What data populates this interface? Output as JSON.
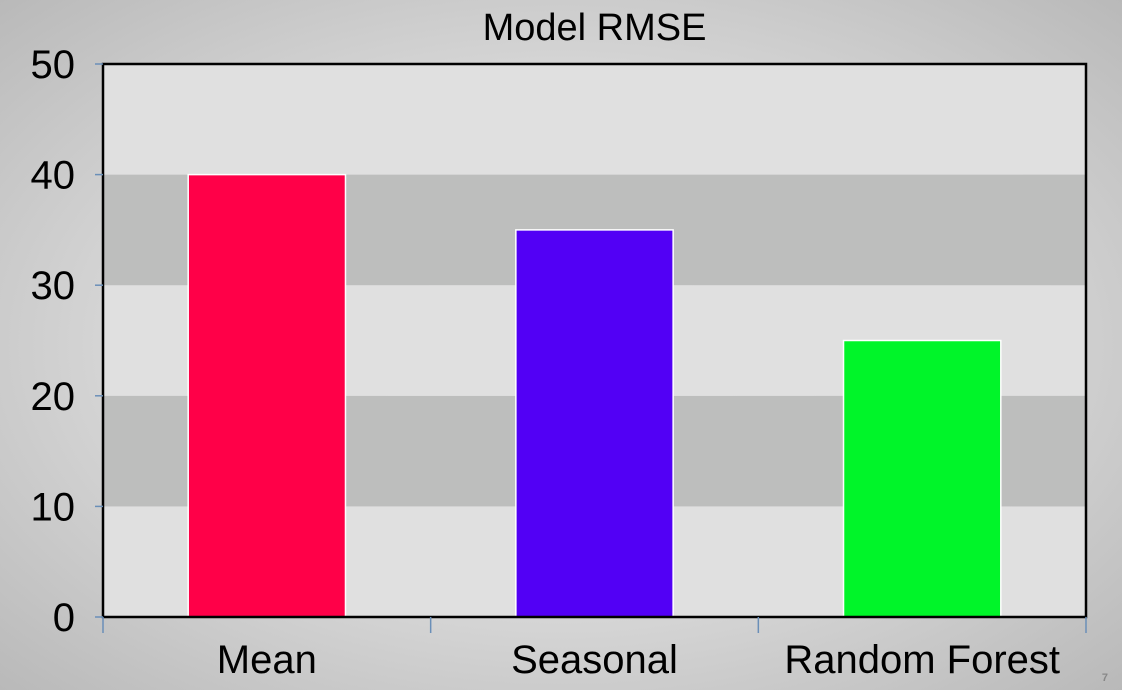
{
  "slide": {
    "page_number": "7"
  },
  "chart_data": {
    "type": "bar",
    "title": "Model RMSE",
    "xlabel": "",
    "ylabel": "",
    "categories": [
      "Mean",
      "Seasonal",
      "Random Forest"
    ],
    "values": [
      40,
      35,
      25
    ],
    "bar_colors": [
      "#ff0048",
      "#5200f5",
      "#00f529"
    ],
    "ylim": [
      0,
      50
    ],
    "yticks": [
      0,
      10,
      20,
      30,
      40,
      50
    ],
    "grid": "alternating horizontal bands",
    "band_colors": [
      "#e0e0e0",
      "#bdbebd"
    ],
    "legend": "none"
  }
}
